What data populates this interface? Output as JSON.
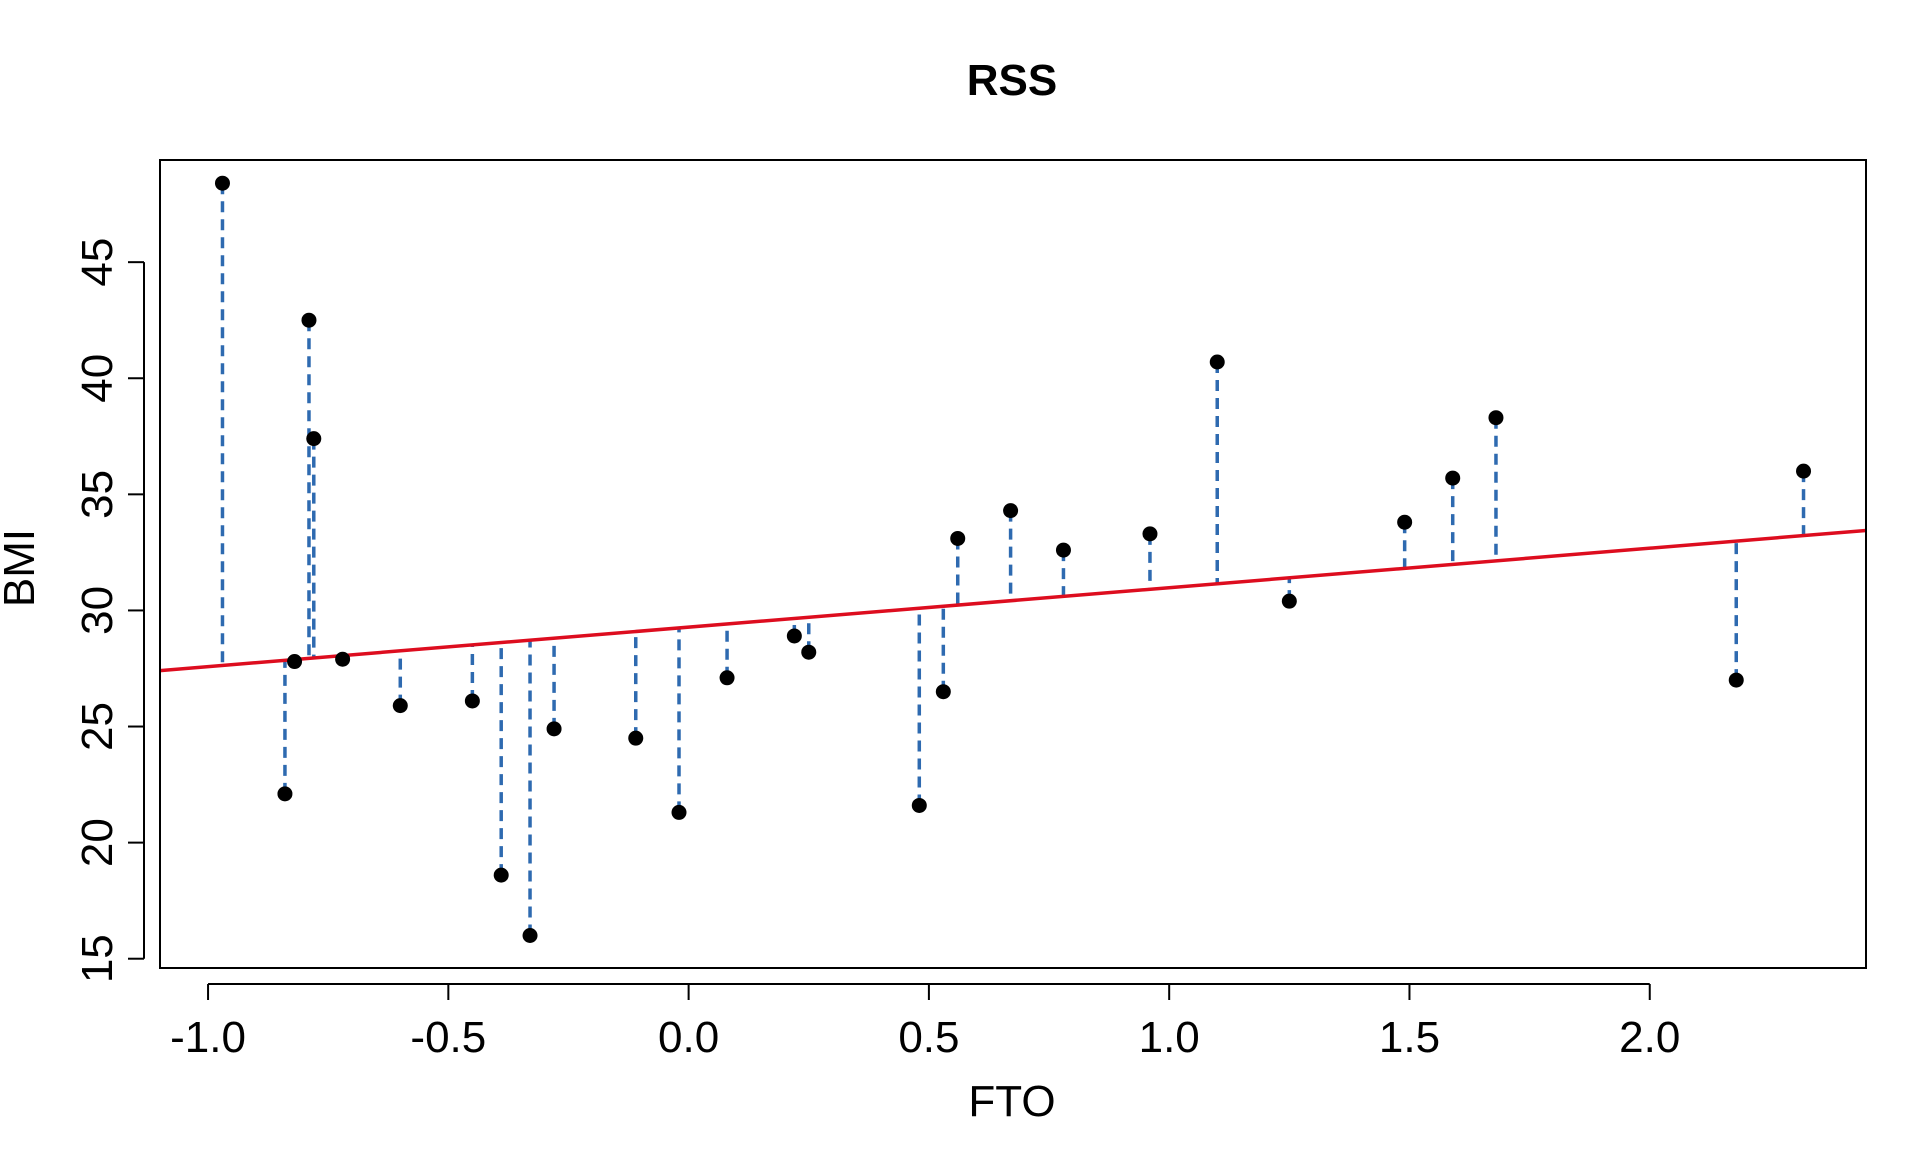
{
  "chart_data": {
    "type": "scatter",
    "title": "RSS",
    "xlabel": "FTO",
    "ylabel": "BMI",
    "xlim": [
      -1.1,
      2.45
    ],
    "ylim": [
      14.6,
      49.4
    ],
    "x_ticks": [
      -1.0,
      -0.5,
      0.0,
      0.5,
      1.0,
      1.5,
      2.0
    ],
    "x_tick_labels": [
      "-1.0",
      "-0.5",
      "0.0",
      "0.5",
      "1.0",
      "1.5",
      "2.0"
    ],
    "y_ticks": [
      15,
      20,
      25,
      30,
      35,
      40,
      45
    ],
    "y_tick_labels": [
      "15",
      "20",
      "25",
      "30",
      "35",
      "40",
      "45"
    ],
    "grid": false,
    "regression_line": {
      "intercept": 29.28,
      "slope": 1.7,
      "color": "#dd0d1f"
    },
    "residual_color": "#2e6ab0",
    "point_color": "#000000",
    "points": [
      {
        "x": -0.97,
        "y": 48.4
      },
      {
        "x": -0.84,
        "y": 22.1
      },
      {
        "x": -0.82,
        "y": 27.8
      },
      {
        "x": -0.79,
        "y": 42.5
      },
      {
        "x": -0.78,
        "y": 37.4
      },
      {
        "x": -0.72,
        "y": 27.9
      },
      {
        "x": -0.6,
        "y": 25.9
      },
      {
        "x": -0.45,
        "y": 26.1
      },
      {
        "x": -0.39,
        "y": 18.6
      },
      {
        "x": -0.33,
        "y": 16.0
      },
      {
        "x": -0.28,
        "y": 24.9
      },
      {
        "x": -0.11,
        "y": 24.5
      },
      {
        "x": -0.02,
        "y": 21.3
      },
      {
        "x": 0.08,
        "y": 27.1
      },
      {
        "x": 0.22,
        "y": 28.9
      },
      {
        "x": 0.25,
        "y": 28.2
      },
      {
        "x": 0.48,
        "y": 21.6
      },
      {
        "x": 0.53,
        "y": 26.5
      },
      {
        "x": 0.56,
        "y": 33.1
      },
      {
        "x": 0.67,
        "y": 34.3
      },
      {
        "x": 0.78,
        "y": 32.6
      },
      {
        "x": 0.96,
        "y": 33.3
      },
      {
        "x": 1.1,
        "y": 40.7
      },
      {
        "x": 1.25,
        "y": 30.4
      },
      {
        "x": 1.49,
        "y": 33.8
      },
      {
        "x": 1.59,
        "y": 35.7
      },
      {
        "x": 1.68,
        "y": 38.3
      },
      {
        "x": 2.18,
        "y": 27.0
      },
      {
        "x": 2.32,
        "y": 36.0
      }
    ]
  }
}
